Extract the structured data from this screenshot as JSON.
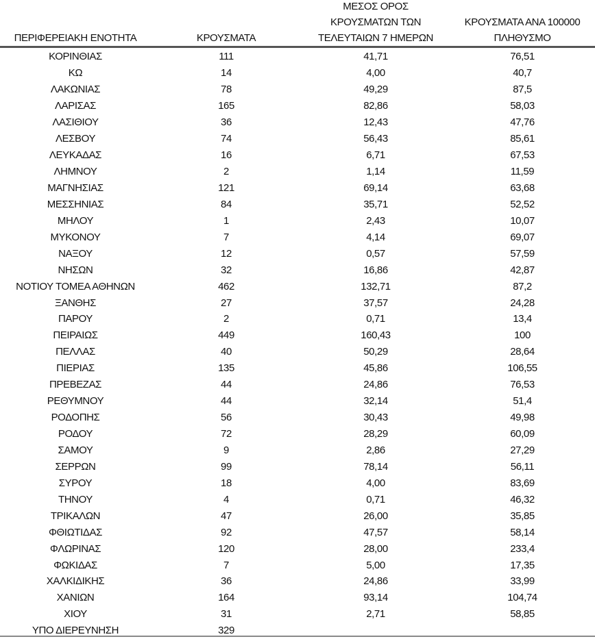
{
  "table": {
    "headers": [
      [
        "ΠΕΡΙΦΕΡΕΙΑΚΗ ΕΝΟΤΗΤΑ"
      ],
      [
        "ΚΡΟΥΣΜΑΤΑ"
      ],
      [
        "ΜΕΣΟΣ ΟΡΟΣ",
        "ΚΡΟΥΣΜΑΤΩΝ ΤΩΝ",
        "ΤΕΛΕΥΤΑΙΩΝ 7 ΗΜΕΡΩΝ"
      ],
      [
        "ΚΡΟΥΣΜΑΤΑ ΑΝΑ 100000",
        "ΠΛΗΘΥΣΜΟ"
      ]
    ],
    "rows": [
      [
        "ΚΟΡΙΝΘΙΑΣ",
        "111",
        "41,71",
        "76,51"
      ],
      [
        "ΚΩ",
        "14",
        "4,00",
        "40,7"
      ],
      [
        "ΛΑΚΩΝΙΑΣ",
        "78",
        "49,29",
        "87,5"
      ],
      [
        "ΛΑΡΙΣΑΣ",
        "165",
        "82,86",
        "58,03"
      ],
      [
        "ΛΑΣΙΘΙΟΥ",
        "36",
        "12,43",
        "47,76"
      ],
      [
        "ΛΕΣΒΟΥ",
        "74",
        "56,43",
        "85,61"
      ],
      [
        "ΛΕΥΚΑΔΑΣ",
        "16",
        "6,71",
        "67,53"
      ],
      [
        "ΛΗΜΝΟΥ",
        "2",
        "1,14",
        "11,59"
      ],
      [
        "ΜΑΓΝΗΣΙΑΣ",
        "121",
        "69,14",
        "63,68"
      ],
      [
        "ΜΕΣΣΗΝΙΑΣ",
        "84",
        "35,71",
        "52,52"
      ],
      [
        "ΜΗΛΟΥ",
        "1",
        "2,43",
        "10,07"
      ],
      [
        "ΜΥΚΟΝΟΥ",
        "7",
        "4,14",
        "69,07"
      ],
      [
        "ΝΑΞΟΥ",
        "12",
        "0,57",
        "57,59"
      ],
      [
        "ΝΗΣΩΝ",
        "32",
        "16,86",
        "42,87"
      ],
      [
        "ΝΟΤΙΟΥ ΤΟΜΕΑ ΑΘΗΝΩΝ",
        "462",
        "132,71",
        "87,2"
      ],
      [
        "ΞΑΝΘΗΣ",
        "27",
        "37,57",
        "24,28"
      ],
      [
        "ΠΑΡΟΥ",
        "2",
        "0,71",
        "13,4"
      ],
      [
        "ΠΕΙΡΑΙΩΣ",
        "449",
        "160,43",
        "100"
      ],
      [
        "ΠΕΛΛΑΣ",
        "40",
        "50,29",
        "28,64"
      ],
      [
        "ΠΙΕΡΙΑΣ",
        "135",
        "45,86",
        "106,55"
      ],
      [
        "ΠΡΕΒΕΖΑΣ",
        "44",
        "24,86",
        "76,53"
      ],
      [
        "ΡΕΘΥΜΝΟΥ",
        "44",
        "32,14",
        "51,4"
      ],
      [
        "ΡΟΔΟΠΗΣ",
        "56",
        "30,43",
        "49,98"
      ],
      [
        "ΡΟΔΟΥ",
        "72",
        "28,29",
        "60,09"
      ],
      [
        "ΣΑΜΟΥ",
        "9",
        "2,86",
        "27,29"
      ],
      [
        "ΣΕΡΡΩΝ",
        "99",
        "78,14",
        "56,11"
      ],
      [
        "ΣΥΡΟΥ",
        "18",
        "4,00",
        "83,69"
      ],
      [
        "ΤΗΝΟΥ",
        "4",
        "0,71",
        "46,32"
      ],
      [
        "ΤΡΙΚΑΛΩΝ",
        "47",
        "26,00",
        "35,85"
      ],
      [
        "ΦΘΙΩΤΙΔΑΣ",
        "92",
        "47,57",
        "58,14"
      ],
      [
        "ΦΛΩΡΙΝΑΣ",
        "120",
        "28,00",
        "233,4"
      ],
      [
        "ΦΩΚΙΔΑΣ",
        "7",
        "5,00",
        "17,35"
      ],
      [
        "ΧΑΛΚΙΔΙΚΗΣ",
        "36",
        "24,86",
        "33,99"
      ],
      [
        "ΧΑΝΙΩΝ",
        "164",
        "93,14",
        "104,74"
      ],
      [
        "ΧΙΟΥ",
        "31",
        "2,71",
        "58,85"
      ],
      [
        "ΥΠΟ ΔΙΕΡΕΥΝΗΣΗ",
        "329",
        "",
        ""
      ]
    ]
  }
}
